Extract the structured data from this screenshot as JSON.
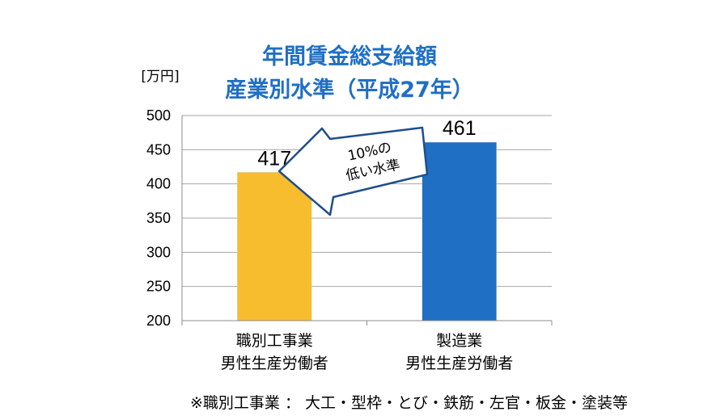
{
  "chart_data": {
    "type": "bar",
    "title_lines": [
      "年間賃金総支給額",
      "産業別水準（平成27年）"
    ],
    "unit_label": "[万円]",
    "categories": [
      [
        "職別工事業",
        "男性生産労働者"
      ],
      [
        "製造業",
        "男性生産労働者"
      ]
    ],
    "values": [
      417,
      461
    ],
    "data_labels": [
      "417",
      "461"
    ],
    "bar_colors": [
      "#f7bd2f",
      "#1f6fc5"
    ],
    "ylim": [
      200,
      500
    ],
    "yticks": [
      200,
      250,
      300,
      350,
      400,
      450,
      500
    ],
    "grid": true,
    "annotation": {
      "lines": [
        "10%の",
        "低い水準"
      ],
      "from_category": 1,
      "to_category": 0
    },
    "footnote": "※職別工事業 ： 大工・型枠・とび・鉄筋・左官・板金・塗装等"
  },
  "colors": {
    "title": "#1f6fc5",
    "grid": "#a6a6a6",
    "arrow_stroke": "#1f4e8a"
  }
}
